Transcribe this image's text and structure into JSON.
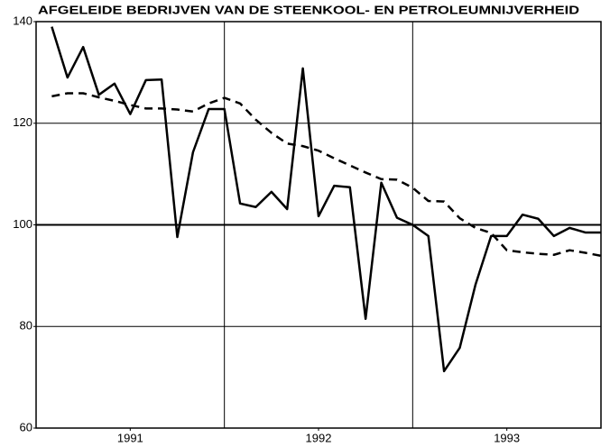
{
  "chart_data": {
    "type": "line",
    "title": "AFGELEIDE BEDRIJVEN VAN DE STEENKOOL- EN PETROLEUMNIJVERHEID",
    "x": [
      1,
      2,
      3,
      4,
      5,
      6,
      7,
      8,
      9,
      10,
      11,
      12,
      13,
      14,
      15,
      16,
      17,
      18,
      19,
      20,
      21,
      22,
      23,
      24,
      25,
      26,
      27,
      28,
      29,
      30,
      31,
      32,
      33,
      34,
      35,
      36
    ],
    "series": [
      {
        "color": "#000000",
        "dash": "solid",
        "values": [
          139,
          129,
          135,
          125.6,
          127.8,
          121.8,
          128.5,
          128.6,
          97.6,
          114.3,
          122.8,
          122.8,
          104.2,
          103.5,
          106.5,
          103.1,
          130.8,
          101.7,
          107.7,
          107.4,
          81.5,
          108.3,
          101.4,
          100,
          97.8,
          71.2,
          75.8,
          88.2,
          97.8,
          97.8,
          102,
          101.2,
          97.8,
          99.4,
          98.5,
          98.5
        ]
      },
      {
        "color": "#000000",
        "dash": "dashed",
        "values": [
          125.3,
          125.9,
          125.9,
          125.1,
          124.4,
          123.6,
          122.9,
          122.9,
          122.7,
          122.3,
          123.9,
          125,
          123.9,
          120.7,
          118.1,
          116,
          115.5,
          114.6,
          113.1,
          111.7,
          110.3,
          109,
          108.9,
          107.3,
          104.7,
          104.6,
          101.3,
          99.4,
          98.4,
          95,
          94.6,
          94.3,
          94.1,
          95,
          94.5,
          93.9
        ]
      }
    ],
    "xlim": [
      0,
      36
    ],
    "xticks": [
      {
        "value": 6,
        "label": "1991"
      },
      {
        "value": 18,
        "label": "1992"
      },
      {
        "value": 30,
        "label": "1993"
      }
    ],
    "xgrid": [
      12,
      24
    ],
    "ylim": [
      60,
      140
    ],
    "yticks": [
      60,
      80,
      100,
      120,
      140
    ],
    "ygrid": [
      80,
      100,
      120
    ],
    "grid": true
  }
}
